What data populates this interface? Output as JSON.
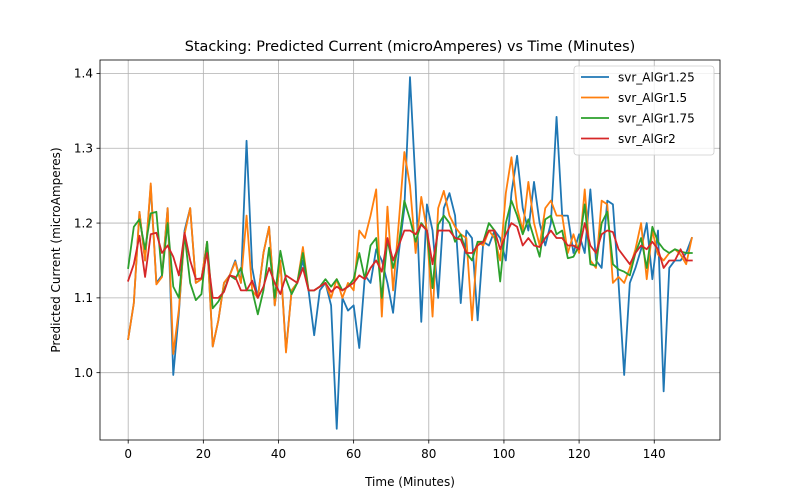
{
  "chart_data": {
    "type": "line",
    "title": "Stacking: Predicted Current (microAmperes) vs Time (Minutes)",
    "xlabel": "Time (Minutes)",
    "ylabel": "Predicted Current (microAmperes)",
    "xlim": [
      -7.5,
      157.5
    ],
    "ylim": [
      0.91,
      1.418
    ],
    "xticks": [
      0,
      20,
      40,
      60,
      80,
      100,
      120,
      140
    ],
    "yticks": [
      1.0,
      1.1,
      1.2,
      1.3,
      1.4
    ],
    "xtick_labels": [
      "0",
      "20",
      "40",
      "60",
      "80",
      "100",
      "120",
      "140"
    ],
    "ytick_labels": [
      "1.0",
      "1.1",
      "1.2",
      "1.3",
      "1.4"
    ],
    "grid": true,
    "legend_position": "top-right",
    "x": [
      0,
      1.5,
      3,
      4.5,
      6,
      7.5,
      9,
      10.5,
      12,
      13.5,
      15,
      16.5,
      18,
      19.5,
      21,
      22.5,
      24,
      25.5,
      27,
      28.5,
      30,
      31.5,
      33,
      34.5,
      36,
      37.5,
      39,
      40.5,
      42,
      43.5,
      45,
      46.5,
      48,
      49.5,
      51,
      52.5,
      54,
      55.5,
      57,
      58.5,
      60,
      61.5,
      63,
      64.5,
      66,
      67.5,
      69,
      70.5,
      72,
      73.5,
      75,
      76.5,
      78,
      79.5,
      81,
      82.5,
      84,
      85.5,
      87,
      88.5,
      90,
      91.5,
      93,
      94.5,
      96,
      97.5,
      99,
      100.5,
      102,
      103.5,
      105,
      106.5,
      108,
      109.5,
      111,
      112.5,
      114,
      115.5,
      117,
      118.5,
      120,
      121.5,
      123,
      124.5,
      126,
      127.5,
      129,
      130.5,
      132,
      133.5,
      135,
      136.5,
      138,
      139.5,
      141,
      142.5,
      144,
      145.5,
      147,
      148.5,
      150
    ],
    "series": [
      {
        "name": "svr_AlGr1.25",
        "color": "#1f77b4",
        "values": [
          1.045,
          1.093,
          1.215,
          1.15,
          1.25,
          1.12,
          1.13,
          1.22,
          0.997,
          1.08,
          1.19,
          1.22,
          1.12,
          1.125,
          1.175,
          1.035,
          1.07,
          1.12,
          1.13,
          1.15,
          1.12,
          1.31,
          1.14,
          1.1,
          1.16,
          1.195,
          1.09,
          1.15,
          1.03,
          1.11,
          1.12,
          1.15,
          1.11,
          1.05,
          1.11,
          1.12,
          1.09,
          0.925,
          1.1,
          1.083,
          1.09,
          1.033,
          1.13,
          1.12,
          1.165,
          1.15,
          1.12,
          1.08,
          1.16,
          1.22,
          1.395,
          1.25,
          1.068,
          1.225,
          1.19,
          1.1,
          1.22,
          1.24,
          1.21,
          1.093,
          1.19,
          1.18,
          1.07,
          1.175,
          1.17,
          1.19,
          1.18,
          1.15,
          1.24,
          1.29,
          1.22,
          1.19,
          1.255,
          1.2,
          1.17,
          1.2,
          1.342,
          1.21,
          1.21,
          1.16,
          1.185,
          1.16,
          1.245,
          1.15,
          1.14,
          1.23,
          1.225,
          1.12,
          0.997,
          1.12,
          1.14,
          1.165,
          1.2,
          1.125,
          1.19,
          0.975,
          1.14,
          1.15,
          1.15,
          1.16,
          1.18
        ]
      },
      {
        "name": "svr_AlGr1.5",
        "color": "#ff7f0e",
        "values": [
          1.045,
          1.093,
          1.215,
          1.15,
          1.253,
          1.118,
          1.128,
          1.22,
          1.025,
          1.085,
          1.185,
          1.22,
          1.12,
          1.125,
          1.175,
          1.035,
          1.07,
          1.12,
          1.13,
          1.148,
          1.12,
          1.21,
          1.11,
          1.1,
          1.16,
          1.195,
          1.09,
          1.15,
          1.027,
          1.11,
          1.12,
          1.168,
          1.11,
          1.11,
          1.115,
          1.12,
          1.1,
          1.125,
          1.1,
          1.12,
          1.11,
          1.19,
          1.18,
          1.21,
          1.245,
          1.075,
          1.222,
          1.11,
          1.2,
          1.295,
          1.25,
          1.16,
          1.235,
          1.19,
          1.075,
          1.22,
          1.243,
          1.21,
          1.195,
          1.185,
          1.18,
          1.07,
          1.175,
          1.17,
          1.19,
          1.18,
          1.15,
          1.24,
          1.288,
          1.22,
          1.19,
          1.255,
          1.2,
          1.17,
          1.22,
          1.23,
          1.21,
          1.21,
          1.16,
          1.185,
          1.16,
          1.245,
          1.15,
          1.14,
          1.23,
          1.225,
          1.12,
          1.128,
          1.12,
          1.14,
          1.165,
          1.2,
          1.125,
          1.19,
          1.158,
          1.15,
          1.16,
          1.165,
          1.158,
          1.145,
          1.18
        ]
      },
      {
        "name": "svr_AlGr1.75",
        "color": "#2ca02c",
        "values": [
          1.14,
          1.195,
          1.205,
          1.165,
          1.213,
          1.215,
          1.13,
          1.2,
          1.115,
          1.1,
          1.185,
          1.12,
          1.097,
          1.105,
          1.175,
          1.086,
          1.095,
          1.11,
          1.13,
          1.125,
          1.14,
          1.11,
          1.11,
          1.078,
          1.11,
          1.167,
          1.1,
          1.163,
          1.125,
          1.105,
          1.12,
          1.16,
          1.11,
          1.11,
          1.115,
          1.125,
          1.115,
          1.125,
          1.11,
          1.115,
          1.125,
          1.16,
          1.125,
          1.17,
          1.18,
          1.1,
          1.178,
          1.14,
          1.17,
          1.23,
          1.205,
          1.175,
          1.2,
          1.19,
          1.113,
          1.198,
          1.21,
          1.2,
          1.175,
          1.185,
          1.16,
          1.15,
          1.175,
          1.175,
          1.2,
          1.19,
          1.122,
          1.2,
          1.23,
          1.21,
          1.185,
          1.205,
          1.18,
          1.155,
          1.205,
          1.21,
          1.185,
          1.19,
          1.153,
          1.155,
          1.17,
          1.225,
          1.145,
          1.143,
          1.2,
          1.215,
          1.145,
          1.138,
          1.135,
          1.13,
          1.16,
          1.18,
          1.14,
          1.195,
          1.175,
          1.165,
          1.16,
          1.165,
          1.162,
          1.16,
          1.16
        ]
      },
      {
        "name": "svr_AlGr2",
        "color": "#d62728",
        "values": [
          1.123,
          1.145,
          1.183,
          1.128,
          1.185,
          1.187,
          1.16,
          1.17,
          1.155,
          1.13,
          1.187,
          1.15,
          1.125,
          1.126,
          1.16,
          1.1,
          1.1,
          1.108,
          1.13,
          1.128,
          1.11,
          1.11,
          1.123,
          1.1,
          1.115,
          1.14,
          1.12,
          1.105,
          1.13,
          1.125,
          1.12,
          1.14,
          1.11,
          1.11,
          1.115,
          1.12,
          1.108,
          1.115,
          1.11,
          1.115,
          1.12,
          1.13,
          1.125,
          1.14,
          1.15,
          1.135,
          1.18,
          1.15,
          1.17,
          1.19,
          1.19,
          1.185,
          1.198,
          1.19,
          1.145,
          1.19,
          1.19,
          1.19,
          1.18,
          1.178,
          1.16,
          1.16,
          1.17,
          1.175,
          1.19,
          1.19,
          1.165,
          1.185,
          1.2,
          1.195,
          1.17,
          1.18,
          1.17,
          1.168,
          1.18,
          1.19,
          1.18,
          1.18,
          1.17,
          1.17,
          1.165,
          1.2,
          1.17,
          1.16,
          1.185,
          1.19,
          1.188,
          1.165,
          1.155,
          1.145,
          1.16,
          1.17,
          1.165,
          1.175,
          1.165,
          1.14,
          1.15,
          1.15,
          1.165,
          1.15,
          1.15
        ]
      }
    ]
  }
}
